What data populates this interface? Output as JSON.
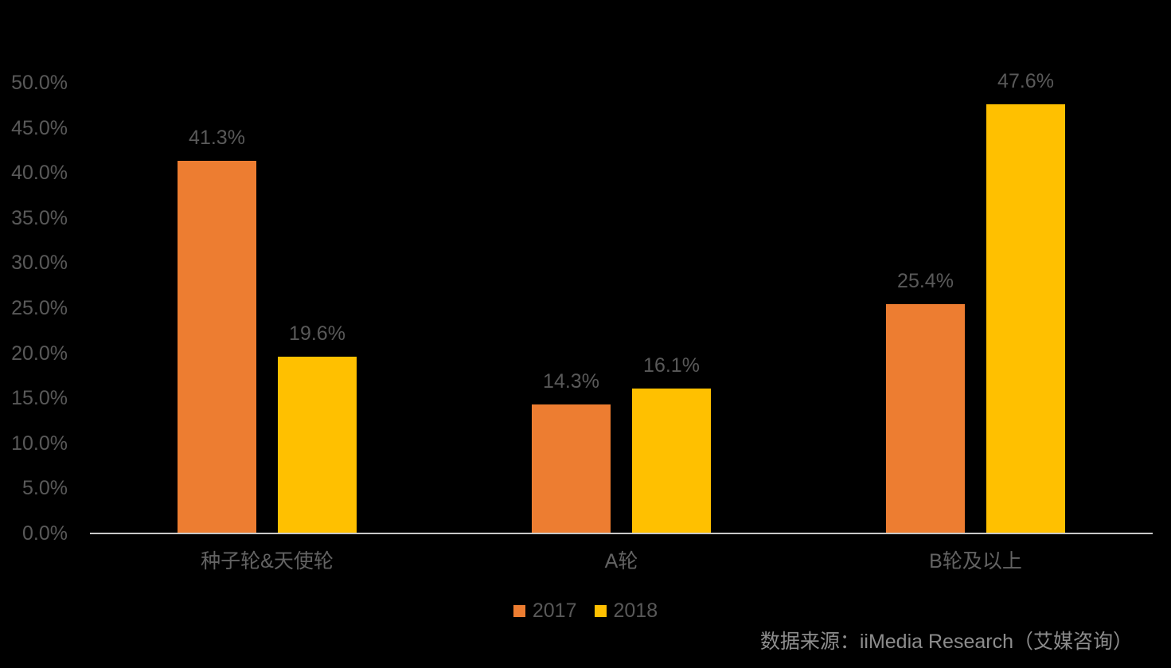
{
  "chart_data": {
    "type": "bar",
    "title": "",
    "categories": [
      "种子轮&天使轮",
      "A轮",
      "B轮及以上"
    ],
    "series": [
      {
        "name": "2017",
        "color": "#ED7D31",
        "values": [
          41.3,
          14.3,
          25.4
        ],
        "labels": [
          "41.3%",
          "14.3%",
          "25.4%"
        ]
      },
      {
        "name": "2018",
        "color": "#FFC000",
        "values": [
          19.6,
          16.1,
          47.6
        ],
        "labels": [
          "19.6%",
          "16.1%",
          "47.6%"
        ]
      }
    ],
    "y_ticks": [
      "0.0%",
      "5.0%",
      "10.0%",
      "15.0%",
      "20.0%",
      "25.0%",
      "30.0%",
      "35.0%",
      "40.0%",
      "45.0%",
      "50.0%"
    ],
    "ylim": [
      0,
      50
    ],
    "xlabel": "",
    "ylabel": "",
    "legend": [
      "2017",
      "2018"
    ],
    "legend_position": "bottom",
    "grid": false
  },
  "source_note": "数据来源：iiMedia Research（艾媒咨询）",
  "colors": {
    "background": "#000000",
    "axis_line": "#C8C8C8",
    "tick_label": "#595959",
    "data_label": "#595959",
    "category_label": "#636363",
    "legend_label": "#595959",
    "source_text": "#8C8C8C"
  }
}
